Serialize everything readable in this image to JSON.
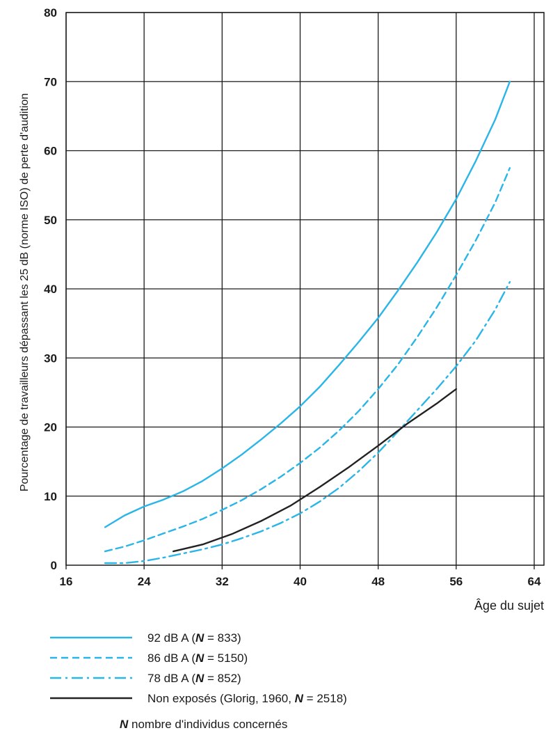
{
  "chart_data": {
    "type": "line",
    "xlabel": "Âge du sujet",
    "ylabel": "Pourcentage de travailleurs dépassant les 25 dB (norme ISO) de perte d'audition",
    "xlim": [
      16,
      65
    ],
    "ylim": [
      0,
      80
    ],
    "x_ticks": [
      16,
      24,
      32,
      40,
      48,
      56,
      64
    ],
    "y_ticks": [
      0,
      10,
      20,
      30,
      40,
      50,
      60,
      70,
      80
    ],
    "grid": true,
    "legend_position": "bottom",
    "series": [
      {
        "name": "92 dB A (N = 833)",
        "legend_main": "92 dB A (",
        "legend_n": "N",
        "legend_rest": " = 833)",
        "color": "#29b5e8",
        "style": "solid",
        "x": [
          20,
          22,
          24,
          26,
          28,
          30,
          32,
          34,
          36,
          38,
          40,
          42,
          44,
          46,
          48,
          50,
          52,
          54,
          56,
          58,
          60,
          61.5
        ],
        "y": [
          5.5,
          7.2,
          8.5,
          9.5,
          10.7,
          12.2,
          14,
          16,
          18.2,
          20.5,
          23,
          25.8,
          29,
          32.3,
          35.8,
          39.7,
          43.8,
          48.2,
          53,
          58.5,
          64.5,
          70
        ]
      },
      {
        "name": "86 dB A (N = 5150)",
        "legend_main": "86 dB A (",
        "legend_n": "N",
        "legend_rest": " = 5150)",
        "color": "#29b5e8",
        "style": "dashed",
        "x": [
          20,
          22,
          24,
          26,
          28,
          30,
          32,
          34,
          36,
          38,
          40,
          42,
          44,
          46,
          48,
          50,
          52,
          54,
          56,
          58,
          60,
          61.5
        ],
        "y": [
          2,
          2.7,
          3.6,
          4.6,
          5.6,
          6.7,
          8,
          9.4,
          11,
          12.8,
          14.8,
          17,
          19.5,
          22.3,
          25.5,
          29,
          33,
          37.3,
          42,
          47,
          52.5,
          57.5
        ]
      },
      {
        "name": "78 dB A (N = 852)",
        "legend_main": "78 dB A (",
        "legend_n": "N",
        "legend_rest": " = 852)",
        "color": "#29b5e8",
        "style": "dashdot",
        "x": [
          20,
          22,
          24,
          26,
          28,
          30,
          32,
          34,
          36,
          38,
          40,
          42,
          44,
          46,
          48,
          50,
          52,
          54,
          56,
          58,
          60,
          61.5
        ],
        "y": [
          0.3,
          0.3,
          0.6,
          1.1,
          1.7,
          2.3,
          3,
          3.9,
          4.9,
          6.1,
          7.5,
          9.2,
          11.2,
          13.6,
          16.3,
          19.3,
          22.4,
          25.5,
          28.8,
          32.5,
          37,
          41
        ]
      },
      {
        "name": "Non exposés (Glorig, 1960, N = 2518)",
        "legend_main": "Non exposés (Glorig, 1960, ",
        "legend_n": "N",
        "legend_rest": " = 2518)",
        "color": "#222222",
        "style": "solid",
        "x": [
          27,
          30,
          33,
          36,
          39,
          42,
          45,
          48,
          51,
          54,
          56
        ],
        "y": [
          2,
          3,
          4.5,
          6.4,
          8.6,
          11.3,
          14.2,
          17.3,
          20.5,
          23.4,
          25.5
        ]
      }
    ],
    "note_symbol": "N",
    "note_text": " nombre d'individus concernés"
  }
}
